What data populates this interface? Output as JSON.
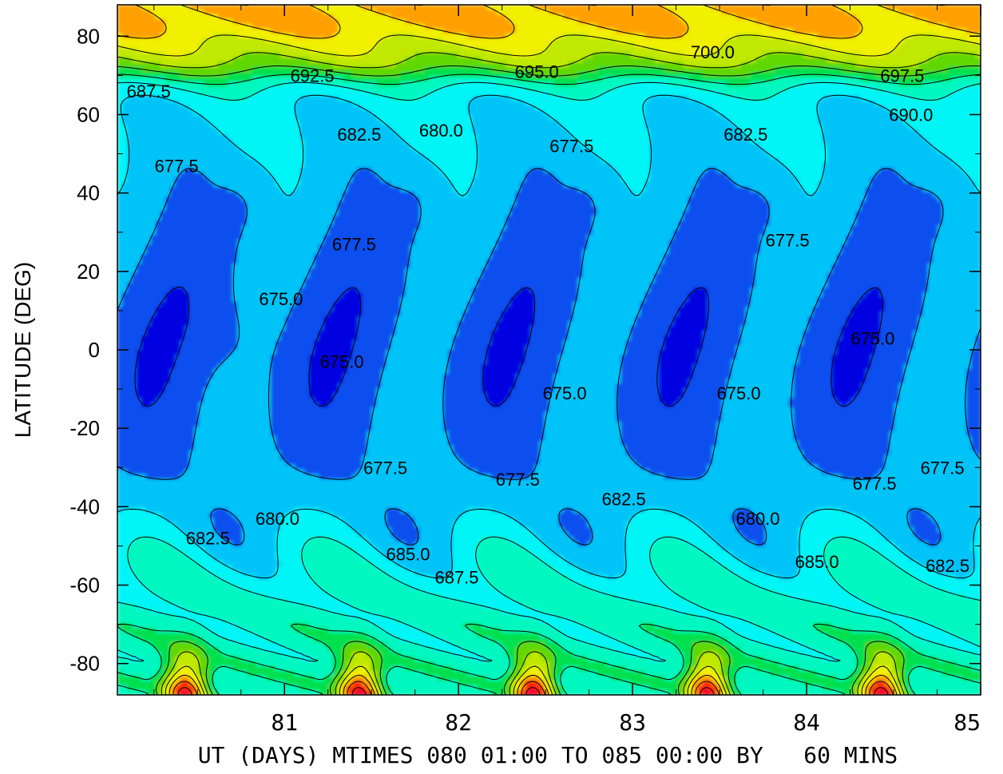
{
  "chart_data": {
    "type": "heatmap",
    "title": "",
    "xlabel": "UT (DAYS) MTIMES 080 01:00 TO 085 00:00 BY   60 MINS",
    "ylabel": "LATITUDE (DEG)",
    "xlim": [
      80.04,
      85.0
    ],
    "ylim": [
      -88,
      88
    ],
    "x_ticks": [
      81,
      82,
      83,
      84,
      85
    ],
    "x_tick_labels": [
      "81",
      "82",
      "83",
      "84",
      "85"
    ],
    "y_ticks": [
      80,
      60,
      40,
      20,
      0,
      -20,
      -40,
      -60,
      -80
    ],
    "y_tick_labels": [
      "80",
      "60",
      "40",
      "20",
      "0",
      "-20",
      "-40",
      "-60",
      "-80"
    ],
    "contour_interval": 2.5,
    "value_range": [
      672.5,
      705.0
    ],
    "colormap_low_to_high": [
      "#0000e0",
      "#0a50ee",
      "#04c4f8",
      "#00f6f6",
      "#00f8c0",
      "#00e050",
      "#60d800",
      "#c0e800",
      "#f0f000",
      "#ffa000",
      "#ff3000",
      "#f8002a",
      "#f000a0",
      "#f000f0"
    ],
    "contour_labels": [
      {
        "text": "700.0",
        "x": 83.46,
        "y": 76
      },
      {
        "text": "695.0",
        "x": 82.45,
        "y": 71
      },
      {
        "text": "692.5",
        "x": 81.16,
        "y": 70
      },
      {
        "text": "697.5",
        "x": 84.55,
        "y": 70
      },
      {
        "text": "687.5",
        "x": 80.22,
        "y": 66
      },
      {
        "text": "690.0",
        "x": 84.6,
        "y": 60
      },
      {
        "text": "682.5",
        "x": 81.43,
        "y": 55
      },
      {
        "text": "680.0",
        "x": 81.9,
        "y": 56
      },
      {
        "text": "682.5",
        "x": 83.65,
        "y": 55
      },
      {
        "text": "677.5",
        "x": 80.38,
        "y": 47
      },
      {
        "text": "677.5",
        "x": 82.65,
        "y": 52
      },
      {
        "text": "677.5",
        "x": 81.4,
        "y": 27
      },
      {
        "text": "677.5",
        "x": 83.89,
        "y": 28
      },
      {
        "text": "675.0",
        "x": 80.98,
        "y": 13
      },
      {
        "text": "675.0",
        "x": 81.33,
        "y": -3
      },
      {
        "text": "675.0",
        "x": 82.61,
        "y": -11
      },
      {
        "text": "675.0",
        "x": 83.61,
        "y": -11
      },
      {
        "text": "675.0",
        "x": 84.38,
        "y": 3
      },
      {
        "text": "677.5",
        "x": 81.58,
        "y": -30
      },
      {
        "text": "677.5",
        "x": 82.34,
        "y": -33
      },
      {
        "text": "682.5",
        "x": 82.95,
        "y": -38
      },
      {
        "text": "677.5",
        "x": 84.39,
        "y": -34
      },
      {
        "text": "677.5",
        "x": 84.78,
        "y": -30
      },
      {
        "text": "680.0",
        "x": 80.96,
        "y": -43
      },
      {
        "text": "682.5",
        "x": 80.56,
        "y": -48
      },
      {
        "text": "680.0",
        "x": 83.72,
        "y": -43
      },
      {
        "text": "685.0",
        "x": 81.71,
        "y": -52
      },
      {
        "text": "687.5",
        "x": 81.99,
        "y": -58
      },
      {
        "text": "685.0",
        "x": 84.06,
        "y": -54
      },
      {
        "text": "682.5",
        "x": 84.81,
        "y": -55
      }
    ]
  }
}
